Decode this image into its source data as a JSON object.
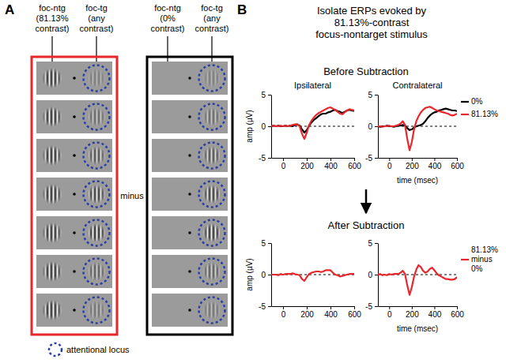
{
  "panel_a": {
    "label": "A",
    "boxes": [
      {
        "color": "#e8262b",
        "labels": [
          [
            "foc-ntg",
            "(81.13%",
            "contrast)"
          ],
          [
            "foc-tg",
            "(any",
            "contrast)"
          ]
        ]
      },
      {
        "color": "#000000",
        "labels": [
          [
            "foc-ntg",
            "(0%",
            "contrast)"
          ],
          [
            "foc-tg",
            "(any",
            "contrast)"
          ]
        ]
      }
    ],
    "operator": "minus",
    "locus_label": "attentional locus"
  },
  "panel_b": {
    "label": "B",
    "heading": [
      "Isolate ERPs evoked by",
      "81.13%-contrast",
      "focus-nontarget stimulus"
    ],
    "sections": [
      "Before Subtraction",
      "After Subtraction"
    ]
  },
  "chart_data": [
    {
      "type": "line",
      "title": "Ipsilateral",
      "ylabel": "amp (µV)",
      "x": [
        -100,
        -80,
        -60,
        -40,
        -20,
        0,
        20,
        40,
        60,
        80,
        100,
        120,
        140,
        160,
        180,
        200,
        220,
        240,
        260,
        280,
        300,
        320,
        340,
        360,
        380,
        400,
        420,
        440,
        460,
        480,
        500,
        520,
        540,
        560,
        580,
        600
      ],
      "xlim": [
        -100,
        600
      ],
      "xticks": [
        0,
        200,
        400,
        600
      ],
      "ylim": [
        -5,
        5
      ],
      "yticks": [
        -5,
        0,
        5
      ],
      "reference_line": 0,
      "series": [
        {
          "color": "#000000",
          "values": [
            0,
            0.1,
            0,
            0.1,
            0,
            0,
            0.1,
            0,
            0.1,
            0,
            0.2,
            0.3,
            0.1,
            -0.5,
            -1.0,
            -0.6,
            0.1,
            0.6,
            1.0,
            1.3,
            1.6,
            1.9,
            2.0,
            2.0,
            2.2,
            2.3,
            2.5,
            2.6,
            2.4,
            2.3,
            2.1,
            2.3,
            2.5,
            2.6,
            2.5,
            2.4
          ]
        },
        {
          "color": "#e8262b",
          "values": [
            0,
            0.1,
            0,
            0,
            0.1,
            0,
            0.1,
            0,
            0.1,
            0.2,
            0.3,
            0.3,
            0,
            -1.2,
            -2.0,
            -1.0,
            0.2,
            0.9,
            1.4,
            1.8,
            2.1,
            2.3,
            2.5,
            2.7,
            2.9,
            3.0,
            2.8,
            2.6,
            2.3,
            2.0,
            1.9,
            2.2,
            2.5,
            2.7,
            2.6,
            2.5
          ]
        }
      ]
    },
    {
      "type": "line",
      "title": "Contralateral",
      "xlabel": "time (msec)",
      "legend": "right",
      "x": [
        -100,
        -80,
        -60,
        -40,
        -20,
        0,
        20,
        40,
        60,
        80,
        100,
        120,
        140,
        160,
        180,
        200,
        220,
        240,
        260,
        280,
        300,
        320,
        340,
        360,
        380,
        400,
        420,
        440,
        460,
        480,
        500,
        520,
        540,
        560,
        580,
        600
      ],
      "xlim": [
        -100,
        600
      ],
      "xticks": [
        0,
        200,
        400,
        600
      ],
      "ylim": [
        -5,
        5
      ],
      "yticks": [
        -5,
        0,
        5
      ],
      "reference_line": 0,
      "series": [
        {
          "name": "0%",
          "color": "#000000",
          "values": [
            0,
            -0.1,
            0,
            0,
            0.1,
            0,
            0,
            -0.1,
            0,
            0.1,
            0.1,
            0.2,
            0.1,
            -0.3,
            -0.6,
            -0.5,
            -0.2,
            0,
            0.1,
            0.2,
            0.4,
            0.8,
            1.3,
            1.7,
            2.0,
            2.2,
            2.3,
            2.5,
            2.6,
            2.7,
            2.8,
            2.7,
            2.6,
            2.5,
            2.5,
            2.4
          ]
        },
        {
          "name": "81.13%",
          "color": "#e8262b",
          "values": [
            0,
            0,
            -0.1,
            0,
            0,
            0.1,
            0,
            0,
            0.1,
            0.2,
            0.4,
            0.8,
            0.2,
            -2.0,
            -3.8,
            -2.5,
            -0.5,
            0.8,
            1.6,
            2.2,
            2.6,
            2.9,
            3.0,
            3.1,
            2.9,
            2.7,
            2.5,
            2.4,
            2.3,
            2.2,
            2.1,
            2.0,
            1.8,
            1.7,
            1.8,
            2.0
          ]
        }
      ]
    },
    {
      "type": "line",
      "ylabel": "amp (µV)",
      "x": [
        -100,
        -80,
        -60,
        -40,
        -20,
        0,
        20,
        40,
        60,
        80,
        100,
        120,
        140,
        160,
        180,
        200,
        220,
        240,
        260,
        280,
        300,
        320,
        340,
        360,
        380,
        400,
        420,
        440,
        460,
        480,
        500,
        520,
        540,
        560,
        580,
        600
      ],
      "xlim": [
        -100,
        600
      ],
      "xticks": [
        0,
        200,
        400,
        600
      ],
      "ylim": [
        -5,
        5
      ],
      "yticks": [
        -5,
        0,
        5
      ],
      "reference_line": 0,
      "series": [
        {
          "color": "#e8262b",
          "values": [
            0,
            0,
            0,
            -0.1,
            0.1,
            0,
            0.1,
            0.1,
            0.1,
            0.2,
            0.1,
            0,
            -0.1,
            -0.7,
            -1.0,
            -0.4,
            0.1,
            0.3,
            0.4,
            0.5,
            0.5,
            0.4,
            0.5,
            0.7,
            0.7,
            0.7,
            0.3,
            0,
            -0.1,
            -0.3,
            -0.2,
            -0.1,
            0,
            0.1,
            0.1,
            0.1
          ]
        }
      ]
    },
    {
      "type": "line",
      "xlabel": "time (msec)",
      "legend": "right",
      "x": [
        -100,
        -80,
        -60,
        -40,
        -20,
        0,
        20,
        40,
        60,
        80,
        100,
        120,
        140,
        160,
        180,
        200,
        220,
        240,
        260,
        280,
        300,
        320,
        340,
        360,
        380,
        400,
        420,
        440,
        460,
        480,
        500,
        520,
        540,
        560,
        580,
        600
      ],
      "xlim": [
        -100,
        600
      ],
      "xticks": [
        0,
        200,
        400,
        600
      ],
      "ylim": [
        -5,
        5
      ],
      "yticks": [
        -5,
        0,
        5
      ],
      "reference_line": 0,
      "series": [
        {
          "name": "81.13% minus 0%",
          "color": "#e8262b",
          "values": [
            0,
            0.1,
            -0.1,
            0,
            -0.1,
            0.1,
            0,
            0.1,
            0.1,
            0.1,
            0.3,
            0.6,
            0.1,
            -1.7,
            -3.2,
            -2.0,
            -0.3,
            0.8,
            1.5,
            1.2,
            0.6,
            0.3,
            0.5,
            0.9,
            1.1,
            0.7,
            0.2,
            -0.1,
            -0.3,
            -0.5,
            -0.7,
            -0.7,
            -0.8,
            -0.8,
            -0.7,
            -0.4
          ]
        }
      ]
    }
  ]
}
